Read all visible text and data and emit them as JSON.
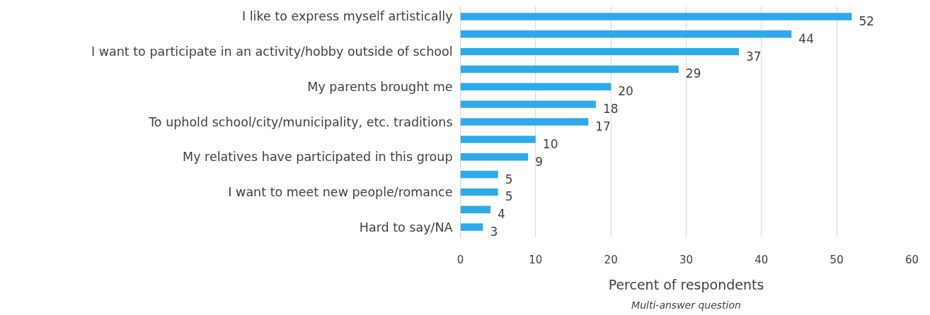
{
  "chart_data": {
    "type": "bar",
    "orientation": "horizontal",
    "categories": [
      "I like to express myself artistically",
      null,
      "I want to participate in an activity/hobby outside of school",
      null,
      "My parents brought me",
      null,
      "To uphold school/city/municipality, etc. traditions",
      null,
      "My relatives have participated in this group",
      null,
      "I want to meet new people/romance",
      null,
      "Hard to say/NA"
    ],
    "values": [
      52,
      44,
      37,
      29,
      20,
      18,
      17,
      10,
      9,
      5,
      5,
      4,
      3
    ],
    "color": "#2eaaea",
    "xlim": [
      0,
      60
    ],
    "xticks": [
      0,
      10,
      20,
      30,
      40,
      50,
      60
    ],
    "grid": "x",
    "data_labels": true,
    "xlabel": "Percent of respondents",
    "annotations": [
      "Multi-answer question"
    ]
  }
}
